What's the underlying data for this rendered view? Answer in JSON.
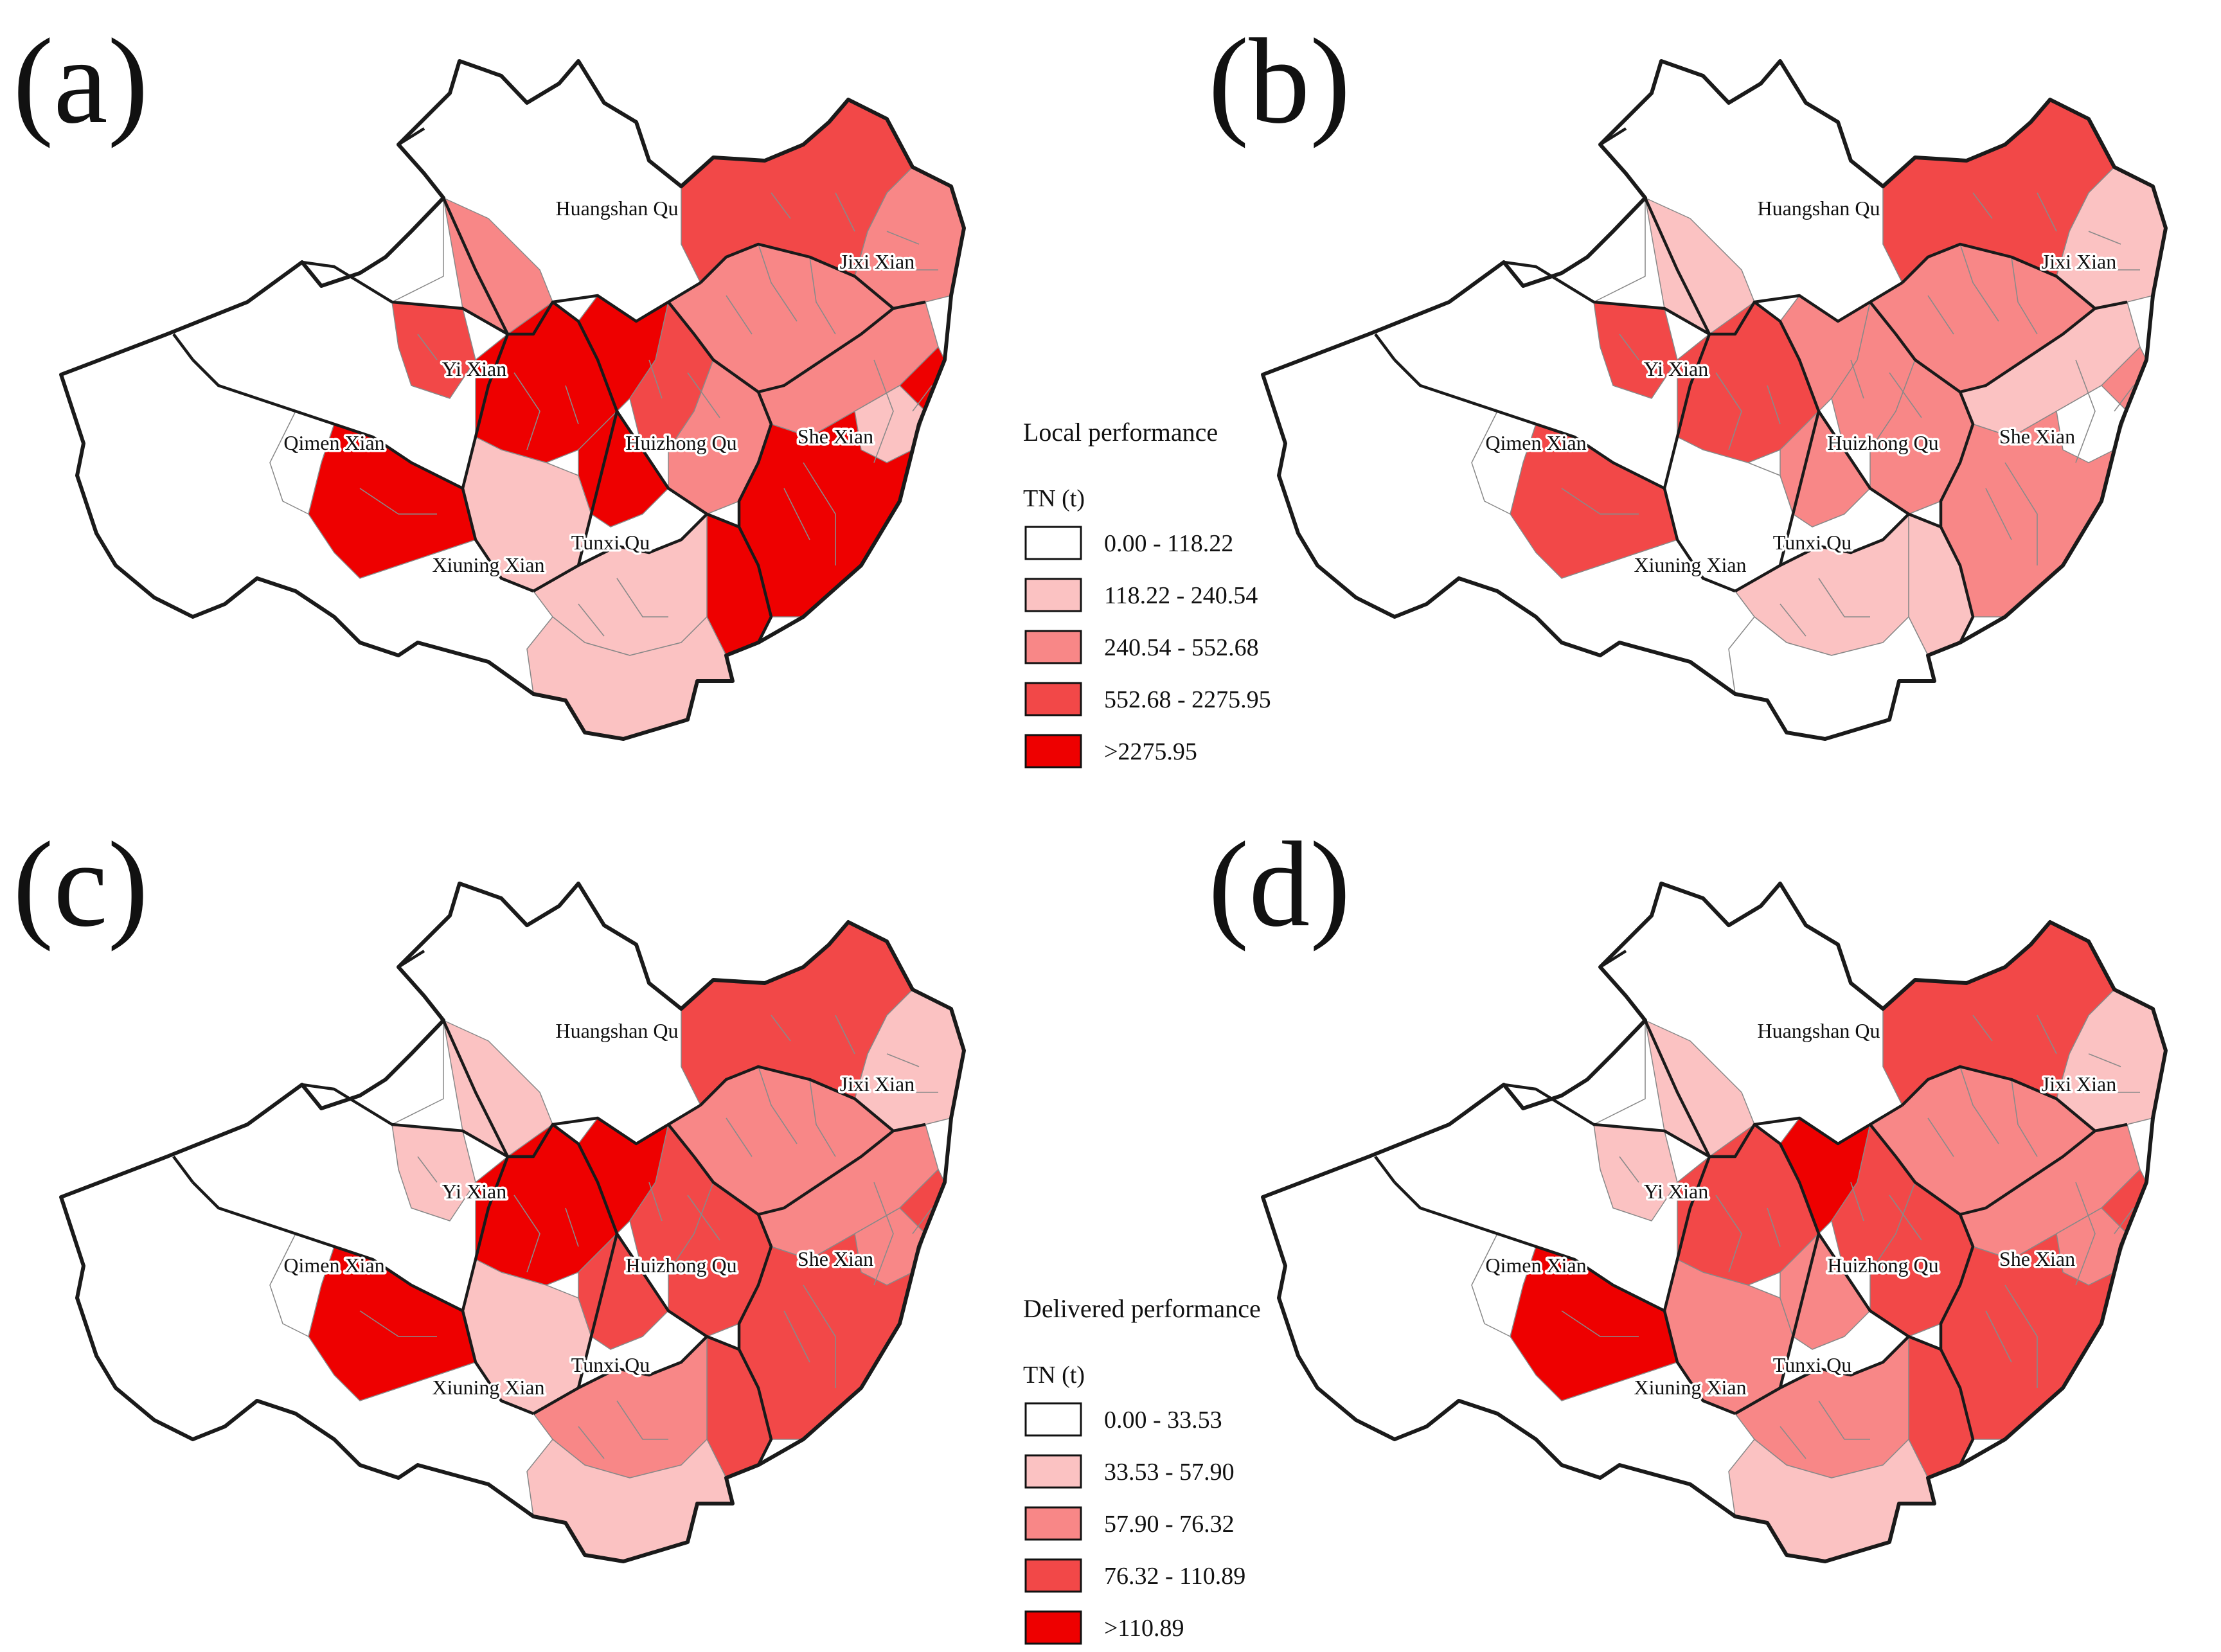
{
  "panels": [
    {
      "label": "(a)",
      "mode": "local",
      "data": {
        "northwest_strip": 0,
        "yi_band": 2,
        "yi_west": 3,
        "xiuning_core": 4,
        "xiuning_sw": 4,
        "xiuning_south": 1,
        "west_nub": 0,
        "tunxi_core": 4,
        "huizhong_north": 4,
        "huizhong_mid": 3,
        "huizhong_south": 2,
        "she_north": 2,
        "she_core": 4,
        "she_east": 1,
        "she_south": 4,
        "jixi_core": 2,
        "jixi_east": 2,
        "jixi_hill": 3,
        "southern_lobe": 1,
        "south_strip": 1
      }
    },
    {
      "label": "(b)",
      "mode": "local",
      "data": {
        "northwest_strip": 0,
        "yi_band": 1,
        "yi_west": 3,
        "xiuning_core": 3,
        "xiuning_sw": 3,
        "xiuning_south": 0,
        "west_nub": 0,
        "tunxi_core": 2,
        "huizhong_north": 2,
        "huizhong_mid": 2,
        "huizhong_south": 2,
        "she_north": 1,
        "she_core": 2,
        "she_east": 0,
        "she_south": 1,
        "jixi_core": 2,
        "jixi_east": 1,
        "jixi_hill": 3,
        "southern_lobe": 1,
        "south_strip": 0
      }
    },
    {
      "label": "(c)",
      "mode": "delivered",
      "data": {
        "northwest_strip": 0,
        "yi_band": 1,
        "yi_west": 1,
        "xiuning_core": 4,
        "xiuning_sw": 4,
        "xiuning_south": 1,
        "west_nub": 0,
        "tunxi_core": 3,
        "huizhong_north": 4,
        "huizhong_mid": 3,
        "huizhong_south": 3,
        "she_north": 2,
        "she_core": 3,
        "she_east": 2,
        "she_south": 3,
        "jixi_core": 2,
        "jixi_east": 1,
        "jixi_hill": 3,
        "southern_lobe": 2,
        "south_strip": 1
      }
    },
    {
      "label": "(d)",
      "mode": "delivered",
      "data": {
        "northwest_strip": 0,
        "yi_band": 1,
        "yi_west": 1,
        "xiuning_core": 3,
        "xiuning_sw": 4,
        "xiuning_south": 2,
        "west_nub": 0,
        "tunxi_core": 2,
        "huizhong_north": 4,
        "huizhong_mid": 3,
        "huizhong_south": 3,
        "she_north": 2,
        "she_core": 3,
        "she_east": 2,
        "she_south": 3,
        "jixi_core": 2,
        "jixi_east": 1,
        "jixi_hill": 3,
        "southern_lobe": 2,
        "south_strip": 1
      }
    }
  ],
  "county_names": {
    "huangshan": "Huangshan Qu",
    "jixi": "Jixi Xian",
    "yi": "Yi Xian",
    "qimen": "Qimen Xian",
    "huizhong": "Huizhong Qu",
    "she": "She Xian",
    "tunxi": "Tunxi Qu",
    "xiuning": "Xiuning Xian"
  },
  "colors": [
    "#ffffff",
    "#fbc2c2",
    "#f88787",
    "#f24848",
    "#ee0000"
  ],
  "legend_local": {
    "title": "Local performance",
    "subtitle": "TN (t)",
    "items": [
      "0.00 - 118.22",
      "118.22 - 240.54",
      "240.54 - 552.68",
      "552.68 - 2275.95",
      ">2275.95"
    ]
  },
  "legend_delivered": {
    "title": "Delivered performance",
    "subtitle": "TN (t)",
    "items": [
      "0.00 - 33.53",
      "33.53 - 57.90",
      "57.90 - 76.32",
      "76.32 - 110.89",
      ">110.89"
    ]
  }
}
